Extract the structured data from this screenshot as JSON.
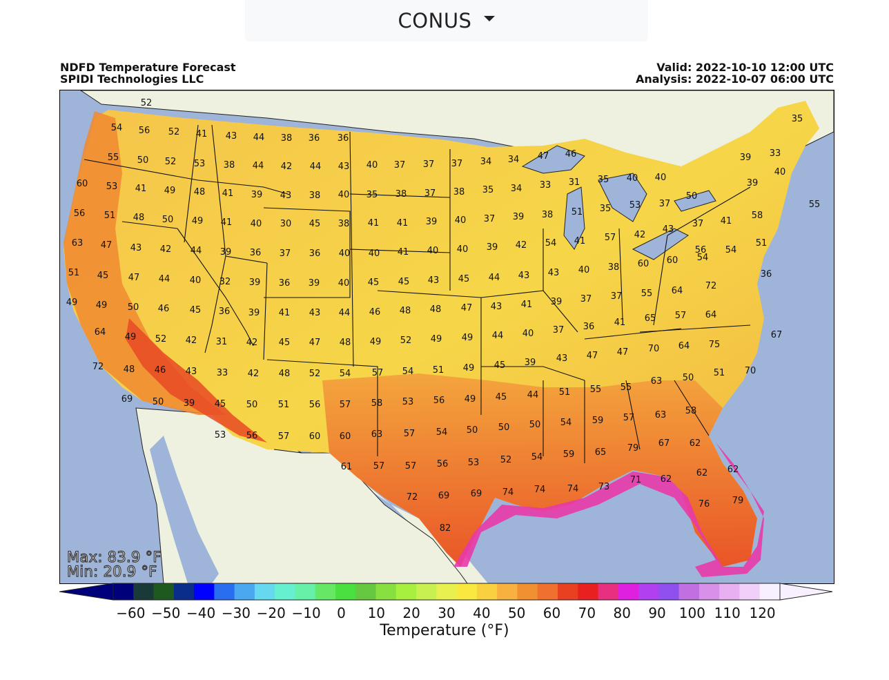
{
  "region_selector": {
    "label": "CONUS"
  },
  "header": {
    "title": "NDFD Temperature Forecast",
    "credit": "SPIDI Technologies LLC",
    "valid": "Valid: 2022-10-10 12:00 UTC",
    "analysis": "Analysis: 2022-10-07 06:00 UTC"
  },
  "stats": {
    "max": "Max: 83.9 °F",
    "min": "Min: 20.9 °F"
  },
  "colorbar": {
    "title": "Temperature (°F)",
    "ticks": [
      "−60",
      "−50",
      "−40",
      "−30",
      "−20",
      "−10",
      "0",
      "10",
      "20",
      "30",
      "40",
      "50",
      "60",
      "70",
      "80",
      "90",
      "100",
      "110",
      "120"
    ],
    "tick_values": [
      -60,
      -50,
      -40,
      -30,
      -20,
      -10,
      0,
      10,
      20,
      30,
      40,
      50,
      60,
      70,
      80,
      90,
      100,
      110,
      120
    ],
    "range": [
      -65,
      125
    ],
    "colors": [
      "#00007a",
      "#1a3a3a",
      "#1e5a20",
      "#0a2c8a",
      "#0000ff",
      "#2a6ef0",
      "#4aa8f0",
      "#66d8f0",
      "#66f0d0",
      "#66f0a8",
      "#66e866",
      "#4ae040",
      "#66c840",
      "#88e040",
      "#a8f040",
      "#c8f050",
      "#e8f050",
      "#f8e840",
      "#f8d040",
      "#f8b040",
      "#f09030",
      "#f07030",
      "#e84020",
      "#e82020",
      "#e83080",
      "#e020e0",
      "#b040f0",
      "#9050f0",
      "#c070e0",
      "#d890e8",
      "#e8b0f0",
      "#f0d0f8",
      "#f8f0ff"
    ]
  },
  "chart_data": {
    "type": "map",
    "title": "NDFD Temperature Forecast",
    "units": "°F",
    "stations": [
      {
        "label": "52"
      },
      {
        "label": "54"
      },
      {
        "label": "56"
      },
      {
        "label": "52"
      },
      {
        "label": "41"
      },
      {
        "label": "43"
      },
      {
        "label": "44"
      },
      {
        "label": "38"
      },
      {
        "label": "36"
      },
      {
        "label": "36"
      },
      {
        "label": "55"
      },
      {
        "label": "50"
      },
      {
        "label": "52"
      },
      {
        "label": "53"
      },
      {
        "label": "38"
      },
      {
        "label": "44"
      },
      {
        "label": "42"
      },
      {
        "label": "44"
      },
      {
        "label": "43"
      },
      {
        "label": "40"
      },
      {
        "label": "37"
      },
      {
        "label": "37"
      },
      {
        "label": "37"
      },
      {
        "label": "34"
      },
      {
        "label": "34"
      },
      {
        "label": "47"
      },
      {
        "label": "46"
      },
      {
        "label": "39"
      },
      {
        "label": "33"
      },
      {
        "label": "35"
      },
      {
        "label": "60"
      },
      {
        "label": "53"
      },
      {
        "label": "41"
      },
      {
        "label": "49"
      },
      {
        "label": "48"
      },
      {
        "label": "41"
      },
      {
        "label": "39"
      },
      {
        "label": "43"
      },
      {
        "label": "38"
      },
      {
        "label": "40"
      },
      {
        "label": "35"
      },
      {
        "label": "38"
      },
      {
        "label": "37"
      },
      {
        "label": "38"
      },
      {
        "label": "35"
      },
      {
        "label": "34"
      },
      {
        "label": "33"
      },
      {
        "label": "31"
      },
      {
        "label": "35"
      },
      {
        "label": "40"
      },
      {
        "label": "40"
      },
      {
        "label": "50"
      },
      {
        "label": "39"
      },
      {
        "label": "40"
      },
      {
        "label": "56"
      },
      {
        "label": "51"
      },
      {
        "label": "48"
      },
      {
        "label": "50"
      },
      {
        "label": "49"
      },
      {
        "label": "41"
      },
      {
        "label": "40"
      },
      {
        "label": "30"
      },
      {
        "label": "45"
      },
      {
        "label": "38"
      },
      {
        "label": "41"
      },
      {
        "label": "41"
      },
      {
        "label": "39"
      },
      {
        "label": "40"
      },
      {
        "label": "37"
      },
      {
        "label": "39"
      },
      {
        "label": "38"
      },
      {
        "label": "51"
      },
      {
        "label": "35"
      },
      {
        "label": "53"
      },
      {
        "label": "37"
      },
      {
        "label": "37"
      },
      {
        "label": "41"
      },
      {
        "label": "58"
      },
      {
        "label": "55"
      },
      {
        "label": "63"
      },
      {
        "label": "47"
      },
      {
        "label": "43"
      },
      {
        "label": "42"
      },
      {
        "label": "44"
      },
      {
        "label": "39"
      },
      {
        "label": "36"
      },
      {
        "label": "37"
      },
      {
        "label": "36"
      },
      {
        "label": "40"
      },
      {
        "label": "40"
      },
      {
        "label": "41"
      },
      {
        "label": "40"
      },
      {
        "label": "40"
      },
      {
        "label": "39"
      },
      {
        "label": "42"
      },
      {
        "label": "54"
      },
      {
        "label": "41"
      },
      {
        "label": "57"
      },
      {
        "label": "42"
      },
      {
        "label": "43"
      },
      {
        "label": "56"
      },
      {
        "label": "54"
      },
      {
        "label": "51"
      },
      {
        "label": "51"
      },
      {
        "label": "45"
      },
      {
        "label": "47"
      },
      {
        "label": "44"
      },
      {
        "label": "40"
      },
      {
        "label": "32"
      },
      {
        "label": "39"
      },
      {
        "label": "36"
      },
      {
        "label": "39"
      },
      {
        "label": "40"
      },
      {
        "label": "45"
      },
      {
        "label": "45"
      },
      {
        "label": "43"
      },
      {
        "label": "45"
      },
      {
        "label": "44"
      },
      {
        "label": "43"
      },
      {
        "label": "43"
      },
      {
        "label": "40"
      },
      {
        "label": "38"
      },
      {
        "label": "60"
      },
      {
        "label": "60"
      },
      {
        "label": "54"
      },
      {
        "label": "36"
      },
      {
        "label": "49"
      },
      {
        "label": "49"
      },
      {
        "label": "50"
      },
      {
        "label": "46"
      },
      {
        "label": "45"
      },
      {
        "label": "36"
      },
      {
        "label": "39"
      },
      {
        "label": "41"
      },
      {
        "label": "43"
      },
      {
        "label": "44"
      },
      {
        "label": "46"
      },
      {
        "label": "48"
      },
      {
        "label": "48"
      },
      {
        "label": "47"
      },
      {
        "label": "43"
      },
      {
        "label": "41"
      },
      {
        "label": "39"
      },
      {
        "label": "37"
      },
      {
        "label": "37"
      },
      {
        "label": "55"
      },
      {
        "label": "64"
      },
      {
        "label": "72"
      },
      {
        "label": "64"
      },
      {
        "label": "49"
      },
      {
        "label": "52"
      },
      {
        "label": "42"
      },
      {
        "label": "31"
      },
      {
        "label": "42"
      },
      {
        "label": "45"
      },
      {
        "label": "47"
      },
      {
        "label": "48"
      },
      {
        "label": "49"
      },
      {
        "label": "52"
      },
      {
        "label": "49"
      },
      {
        "label": "49"
      },
      {
        "label": "44"
      },
      {
        "label": "40"
      },
      {
        "label": "37"
      },
      {
        "label": "36"
      },
      {
        "label": "41"
      },
      {
        "label": "65"
      },
      {
        "label": "57"
      },
      {
        "label": "64"
      },
      {
        "label": "67"
      },
      {
        "label": "72"
      },
      {
        "label": "48"
      },
      {
        "label": "46"
      },
      {
        "label": "43"
      },
      {
        "label": "33"
      },
      {
        "label": "42"
      },
      {
        "label": "48"
      },
      {
        "label": "52"
      },
      {
        "label": "54"
      },
      {
        "label": "57"
      },
      {
        "label": "54"
      },
      {
        "label": "51"
      },
      {
        "label": "49"
      },
      {
        "label": "45"
      },
      {
        "label": "39"
      },
      {
        "label": "43"
      },
      {
        "label": "47"
      },
      {
        "label": "47"
      },
      {
        "label": "70"
      },
      {
        "label": "64"
      },
      {
        "label": "75"
      },
      {
        "label": "70"
      },
      {
        "label": "69"
      },
      {
        "label": "50"
      },
      {
        "label": "39"
      },
      {
        "label": "45"
      },
      {
        "label": "50"
      },
      {
        "label": "51"
      },
      {
        "label": "56"
      },
      {
        "label": "57"
      },
      {
        "label": "58"
      },
      {
        "label": "53"
      },
      {
        "label": "56"
      },
      {
        "label": "49"
      },
      {
        "label": "45"
      },
      {
        "label": "44"
      },
      {
        "label": "51"
      },
      {
        "label": "55"
      },
      {
        "label": "55"
      },
      {
        "label": "63"
      },
      {
        "label": "50"
      },
      {
        "label": "51"
      },
      {
        "label": "53"
      },
      {
        "label": "56"
      },
      {
        "label": "57"
      },
      {
        "label": "60"
      },
      {
        "label": "60"
      },
      {
        "label": "63"
      },
      {
        "label": "57"
      },
      {
        "label": "54"
      },
      {
        "label": "50"
      },
      {
        "label": "50"
      },
      {
        "label": "50"
      },
      {
        "label": "54"
      },
      {
        "label": "59"
      },
      {
        "label": "57"
      },
      {
        "label": "63"
      },
      {
        "label": "58"
      },
      {
        "label": "61"
      },
      {
        "label": "57"
      },
      {
        "label": "57"
      },
      {
        "label": "56"
      },
      {
        "label": "53"
      },
      {
        "label": "52"
      },
      {
        "label": "54"
      },
      {
        "label": "59"
      },
      {
        "label": "65"
      },
      {
        "label": "79"
      },
      {
        "label": "67"
      },
      {
        "label": "62"
      },
      {
        "label": "62"
      },
      {
        "label": "62"
      },
      {
        "label": "72"
      },
      {
        "label": "69"
      },
      {
        "label": "69"
      },
      {
        "label": "74"
      },
      {
        "label": "74"
      },
      {
        "label": "74"
      },
      {
        "label": "73"
      },
      {
        "label": "71"
      },
      {
        "label": "62"
      },
      {
        "label": "79"
      },
      {
        "label": "76"
      },
      {
        "label": "82"
      }
    ]
  }
}
